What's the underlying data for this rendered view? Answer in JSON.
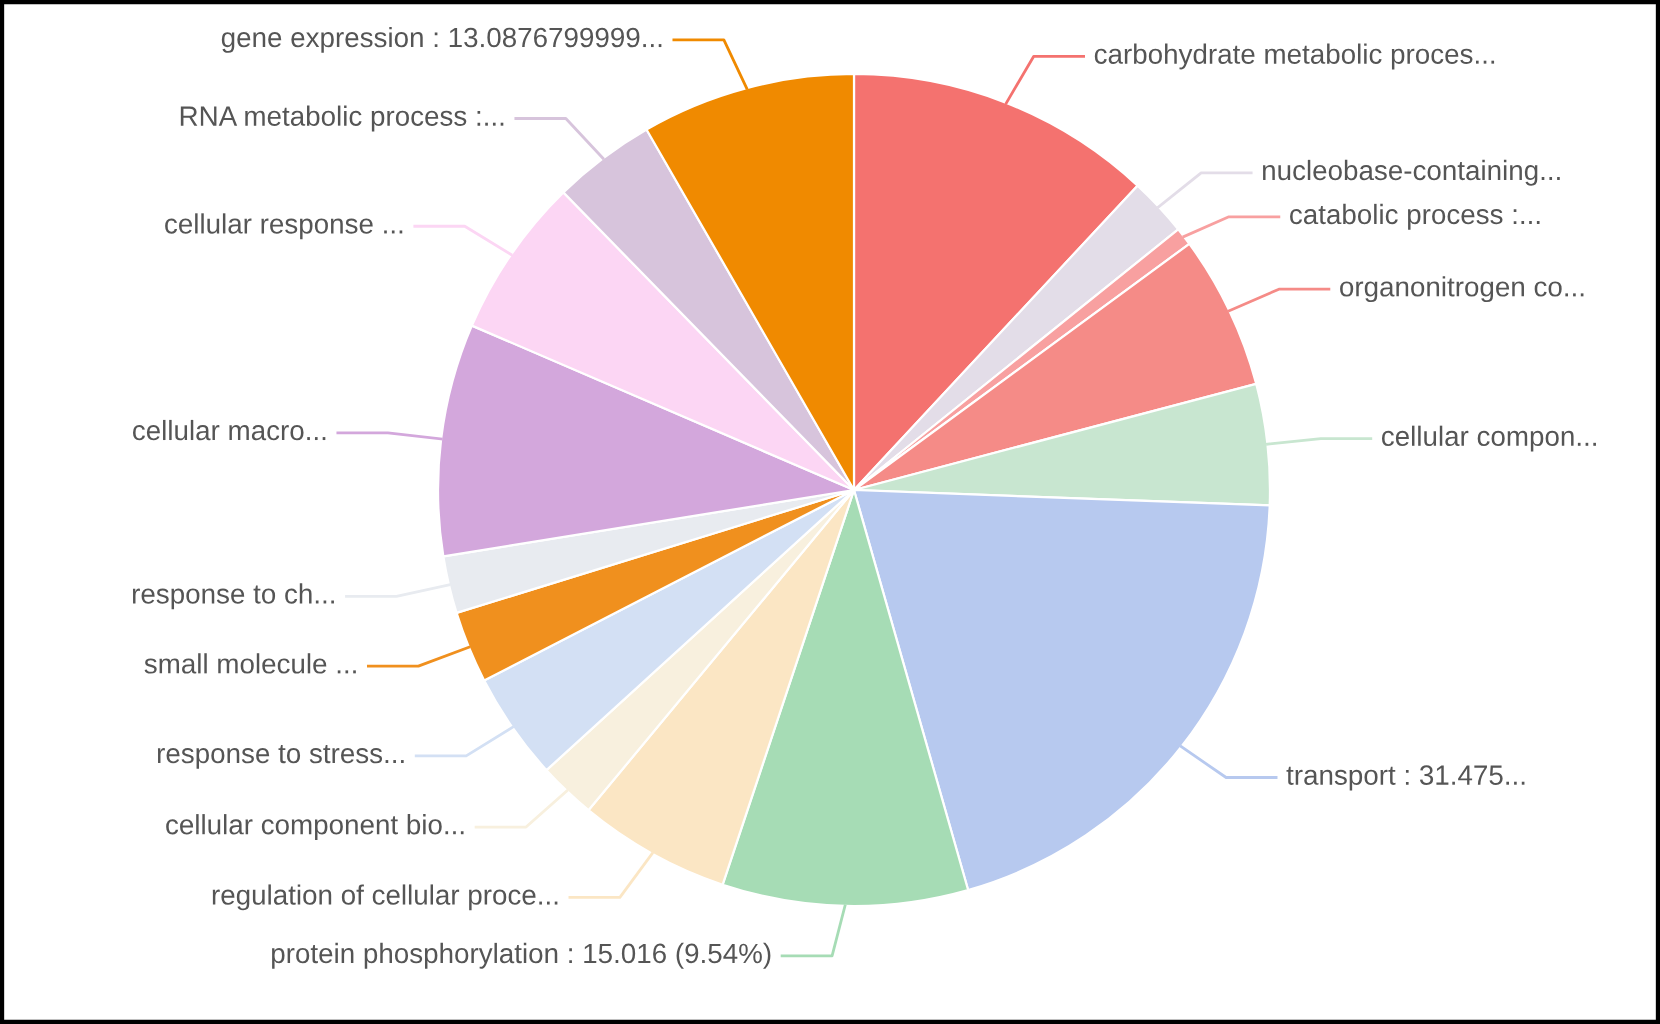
{
  "chart_data": {
    "type": "pie",
    "categories": [
      "carbohydrate metabolic proces...",
      "nucleobase-containing...",
      "catabolic process :...",
      "organonitrogen co...",
      "cellular compon...",
      "transport : 31.475...",
      "protein phosphorylation : 15.016 (9.54%)",
      "regulation of cellular proce...",
      "cellular component bio...",
      "response to stress...",
      "small molecule ...",
      "response to ch...",
      "cellular macro...",
      "cellular response ...",
      "RNA metabolic process :...",
      "gene expression : 13.0876799999..."
    ],
    "values": [
      18.8,
      3.6,
      1.1,
      9.4,
      7.4,
      31.475,
      15.016,
      9.3,
      3.5,
      6.6,
      4.4,
      3.5,
      14.2,
      9.8,
      6.3,
      13.088
    ],
    "colors": [
      "#f4726f",
      "#e3dde8",
      "#f8a0a0",
      "#f58b87",
      "#c8e6d0",
      "#b7c9ef",
      "#a6dcb5",
      "#fbe6c4",
      "#f8f0de",
      "#d3e0f4",
      "#f0901e",
      "#e8ebf0",
      "#d3a7dc",
      "#fcd6f4",
      "#d7c4dc",
      "#f08a00"
    ]
  }
}
